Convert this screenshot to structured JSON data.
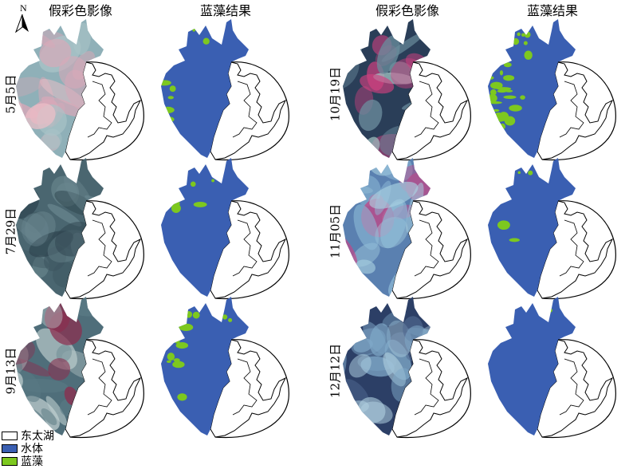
{
  "headers": {
    "false_color": "假彩色影像",
    "cyano_result": "蓝藻结果"
  },
  "north_label": "N",
  "dates": {
    "d1": "5月5日",
    "d2": "7月29日",
    "d3": "9月13日",
    "d4": "10月19日",
    "d5": "11月05日",
    "d6": "12月12日"
  },
  "legend": {
    "items": [
      {
        "label": "东太湖",
        "color": "#ffffff"
      },
      {
        "label": "水体",
        "color": "#3a5fb2"
      },
      {
        "label": "蓝藻",
        "color": "#7dc81f"
      }
    ]
  },
  "colors": {
    "water": "#3a5fb2",
    "algae": "#7dc81f",
    "outline": "#000000"
  },
  "maps": [
    {
      "date_key": "d1",
      "imagery_palette": [
        "#8fb0b8",
        "#aac4c8",
        "#d8a8b8",
        "#f0c0c8"
      ],
      "algae_level": 0.12
    },
    {
      "date_key": "d2",
      "imagery_palette": [
        "#4a6670",
        "#3d5560",
        "#6b8890",
        "#2f4550"
      ],
      "algae_level": 0.06
    },
    {
      "date_key": "d3",
      "imagery_palette": [
        "#4f6e7a",
        "#5a7a84",
        "#c0d0d0",
        "#8a3050"
      ],
      "algae_level": 0.22
    },
    {
      "date_key": "d4",
      "imagery_palette": [
        "#2a3e58",
        "#6a8c9c",
        "#a0c0c0",
        "#d04080"
      ],
      "algae_level": 0.45
    },
    {
      "date_key": "d5",
      "imagery_palette": [
        "#5a80b0",
        "#8fbcd8",
        "#a8d0e0",
        "#c04888"
      ],
      "algae_level": 0.08
    },
    {
      "date_key": "d6",
      "imagery_palette": [
        "#2c3f66",
        "#7fa8c8",
        "#b0d0e0",
        "#506890"
      ],
      "algae_level": 0.04
    }
  ]
}
